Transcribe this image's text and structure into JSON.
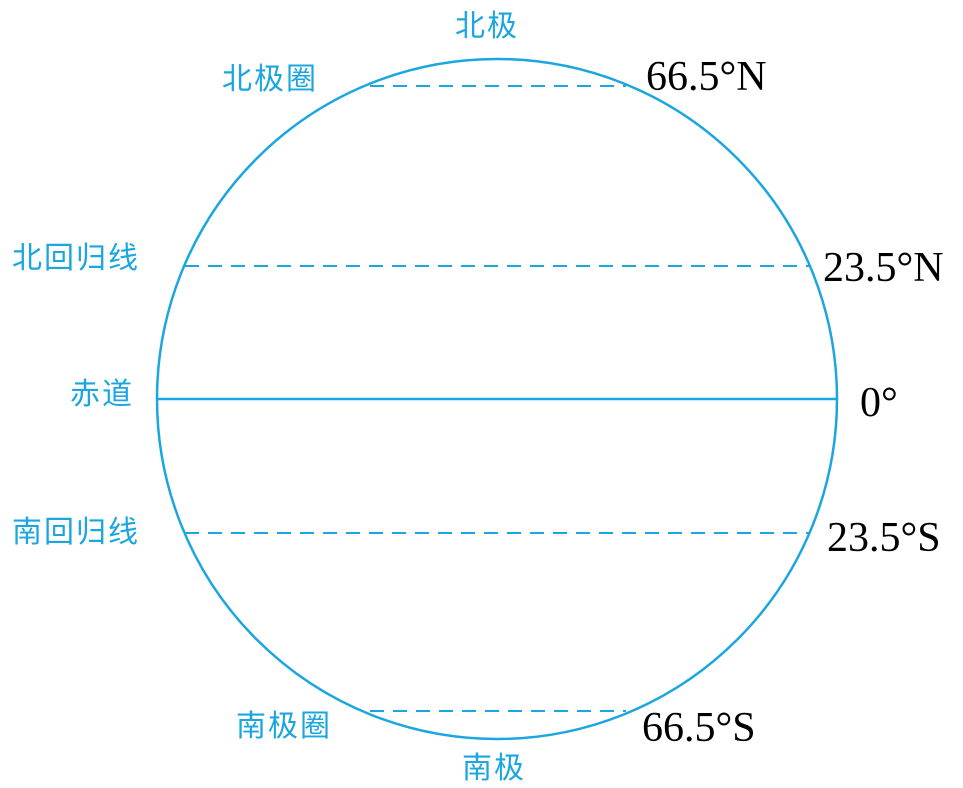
{
  "colors": {
    "outline": "#1BA6E0",
    "label_cn": "#1BA6E0",
    "label_deg": "#000000",
    "background": "#FFFFFF"
  },
  "poles": {
    "north": "北极",
    "south": "南极"
  },
  "lines": [
    {
      "id": "arctic-circle",
      "name": "北极圈",
      "latitude": "66.5°N",
      "lat_value": 66.5,
      "style": "dashed"
    },
    {
      "id": "tropic-of-cancer",
      "name": "北回归线",
      "latitude": "23.5°N",
      "lat_value": 23.5,
      "style": "dashed"
    },
    {
      "id": "equator",
      "name": "赤道",
      "latitude": "0°",
      "lat_value": 0,
      "style": "solid"
    },
    {
      "id": "tropic-of-capricorn",
      "name": "南回归线",
      "latitude": "23.5°S",
      "lat_value": -23.5,
      "style": "dashed"
    },
    {
      "id": "antarctic-circle",
      "name": "南极圈",
      "latitude": "66.5°S",
      "lat_value": -66.5,
      "style": "dashed"
    }
  ]
}
